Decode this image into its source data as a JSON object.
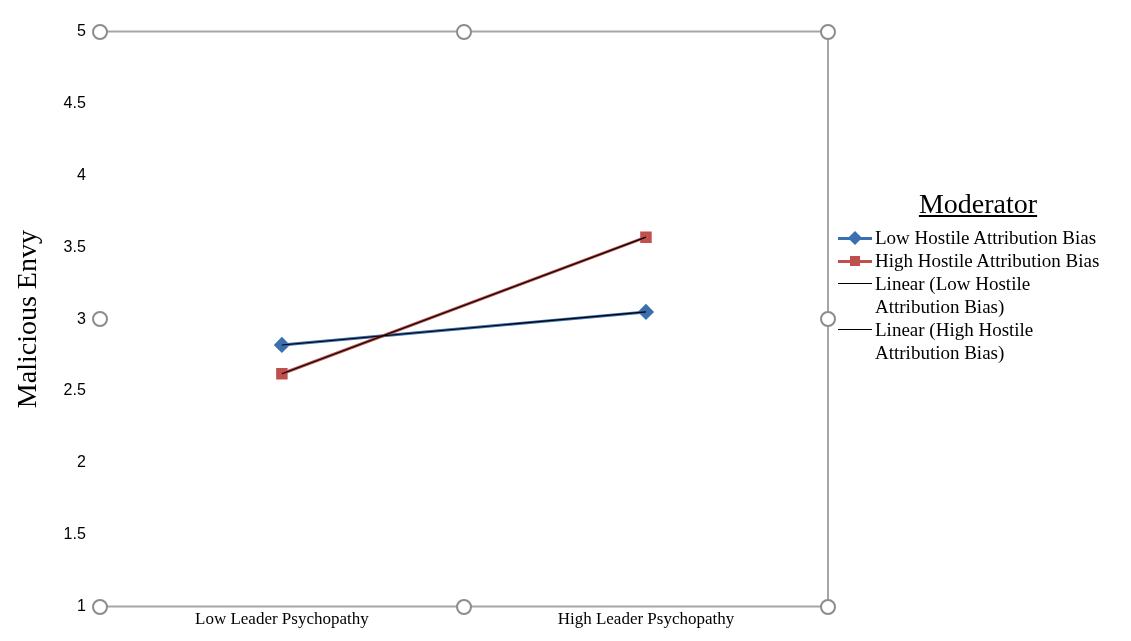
{
  "chart_data": {
    "type": "line",
    "ylabel": "Malicious Envy",
    "legend_title": "Moderator",
    "legend": "right",
    "grid": false,
    "categories": [
      "Low Leader Psychopathy",
      "High Leader Psychopathy"
    ],
    "ylim": [
      1,
      5
    ],
    "yticks": [
      1,
      1.5,
      2,
      2.5,
      3,
      3.5,
      4,
      4.5,
      5
    ],
    "series": [
      {
        "name": "Low Hostile Attribution Bias",
        "color": "#3b6fb0",
        "values": [
          2.82,
          3.05
        ],
        "marker": "diamond"
      },
      {
        "name": "High Hostile Attribution Bias",
        "color": "#c0504d",
        "values": [
          2.62,
          3.57
        ],
        "marker": "square"
      },
      {
        "name": "Linear (Low Hostile Attribution Bias)",
        "color": "#000000",
        "values": [
          2.82,
          3.05
        ],
        "marker": "none"
      },
      {
        "name": "Linear (High Hostile Attribution Bias)",
        "color": "#000000",
        "values": [
          2.62,
          3.57
        ],
        "marker": "none"
      }
    ]
  }
}
